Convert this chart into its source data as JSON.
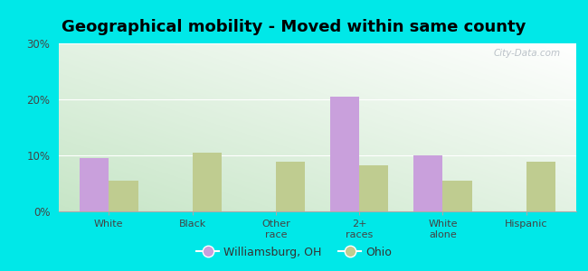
{
  "title": "Geographical mobility - Moved within same county",
  "categories": [
    "White",
    "Black",
    "Other\nrace",
    "2+\nraces",
    "White\nalone",
    "Hispanic"
  ],
  "williamsburg_values": [
    9.5,
    0,
    0,
    20.5,
    10.0,
    0
  ],
  "ohio_values": [
    5.5,
    10.5,
    8.8,
    8.2,
    5.5,
    8.8
  ],
  "bar_color_williamsburg": "#c9a0dc",
  "bar_color_ohio": "#bfcc90",
  "bar_width": 0.35,
  "ylim": [
    0,
    30
  ],
  "yticks": [
    0,
    10,
    20,
    30
  ],
  "ytick_labels": [
    "0%",
    "10%",
    "20%",
    "30%"
  ],
  "legend_labels": [
    "Williamsburg, OH",
    "Ohio"
  ],
  "outer_background": "#00e8e8",
  "title_fontsize": 13,
  "watermark": "City-Data.com"
}
